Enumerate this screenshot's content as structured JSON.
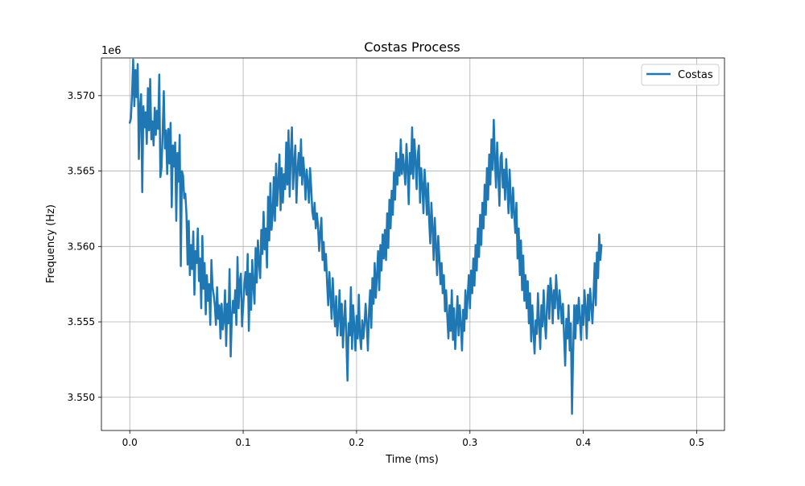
{
  "chart_data": {
    "type": "line",
    "title": "Costas Process",
    "xlabel": "Time (ms)",
    "ylabel": "Frequency (Hz)",
    "y_multiplier_label": "1e6",
    "xlim": [
      -0.025,
      0.5245
    ],
    "ylim": [
      3.5478,
      3.5725
    ],
    "x_ticks": [
      0.0,
      0.1,
      0.2,
      0.3,
      0.4,
      0.5
    ],
    "x_tick_labels": [
      "0.0",
      "0.1",
      "0.2",
      "0.3",
      "0.4",
      "0.5"
    ],
    "y_ticks": [
      3.55,
      3.555,
      3.56,
      3.565,
      3.57
    ],
    "y_tick_labels": [
      "3.550",
      "3.555",
      "3.560",
      "3.565",
      "3.570"
    ],
    "grid": true,
    "legend_position": "top-right",
    "series": [
      {
        "name": "Costas",
        "color": "#1f77b4",
        "x_start": 0.0,
        "x_step": 0.001,
        "values": [
          3.5682,
          3.5685,
          3.5701,
          3.5724,
          3.5693,
          3.5717,
          3.5699,
          3.5721,
          3.5658,
          3.5693,
          3.5701,
          3.5636,
          3.5693,
          3.5679,
          3.5689,
          3.5668,
          3.5705,
          3.5677,
          3.5711,
          3.5671,
          3.5683,
          3.5667,
          3.5692,
          3.5674,
          3.569,
          3.5678,
          3.5714,
          3.5646,
          3.5652,
          3.5676,
          3.5703,
          3.5665,
          3.5677,
          3.5648,
          3.5678,
          3.5655,
          3.5682,
          3.5626,
          3.5667,
          3.5653,
          3.5669,
          3.5617,
          3.5662,
          3.5643,
          3.5674,
          3.5587,
          3.565,
          3.5647,
          3.5632,
          3.5635,
          3.5621,
          3.5588,
          3.5617,
          3.5581,
          3.5601,
          3.5585,
          3.561,
          3.5568,
          3.5597,
          3.5589,
          3.5612,
          3.5577,
          3.5592,
          3.5559,
          3.5607,
          3.5572,
          3.5589,
          3.5555,
          3.5581,
          3.5564,
          3.5575,
          3.5548,
          3.5591,
          3.5573,
          3.5568,
          3.5561,
          3.5548,
          3.5573,
          3.5552,
          3.5561,
          3.5539,
          3.5562,
          3.5545,
          3.5551,
          3.5571,
          3.5534,
          3.5562,
          3.5549,
          3.5585,
          3.5527,
          3.5553,
          3.5564,
          3.5556,
          3.5571,
          3.5548,
          3.5593,
          3.5559,
          3.5577,
          3.5582,
          3.5547,
          3.556,
          3.5574,
          3.5583,
          3.5568,
          3.5595,
          3.5544,
          3.5582,
          3.5558,
          3.5591,
          3.5574,
          3.5562,
          3.5599,
          3.5576,
          3.5604,
          3.5589,
          3.5579,
          3.5611,
          3.5595,
          3.5623,
          3.5598,
          3.5612,
          3.5586,
          3.5633,
          3.5604,
          3.5642,
          3.5611,
          3.5621,
          3.5646,
          3.5617,
          3.5655,
          3.5627,
          3.5642,
          3.5661,
          3.5624,
          3.5652,
          3.5629,
          3.5648,
          3.5638,
          3.5669,
          3.5641,
          3.5677,
          3.5633,
          3.5661,
          3.5679,
          3.5638,
          3.5655,
          3.5667,
          3.5629,
          3.5651,
          3.5662,
          3.5647,
          3.5671,
          3.5641,
          3.5659,
          3.5648,
          3.5631,
          3.5651,
          3.5642,
          3.5629,
          3.5652,
          3.5639,
          3.5623,
          3.5618,
          3.5629,
          3.5612,
          3.5622,
          3.5614,
          3.5597,
          3.5609,
          3.5619,
          3.5591,
          3.5603,
          3.5584,
          3.5595,
          3.5576,
          3.5561,
          3.5583,
          3.5568,
          3.5552,
          3.5579,
          3.5561,
          3.5547,
          3.5567,
          3.5541,
          3.5553,
          3.5571,
          3.5541,
          3.5562,
          3.5533,
          3.5551,
          3.5564,
          3.5539,
          3.5511,
          3.5549,
          3.5541,
          3.5573,
          3.5532,
          3.5561,
          3.5547,
          3.5531,
          3.5554,
          3.5539,
          3.5568,
          3.5541,
          3.5532,
          3.5551,
          3.5539,
          3.5548,
          3.5562,
          3.5549,
          3.5531,
          3.5557,
          3.5571,
          3.5546,
          3.5579,
          3.5562,
          3.5589,
          3.5566,
          3.5581,
          3.5597,
          3.5571,
          3.5601,
          3.5584,
          3.5608,
          3.5592,
          3.5611,
          3.5591,
          3.5622,
          3.5599,
          3.5631,
          3.5612,
          3.5637,
          3.5621,
          3.5649,
          3.5631,
          3.5662,
          3.5641,
          3.5658,
          3.5647,
          3.5671,
          3.5648,
          3.5661,
          3.5652,
          3.5641,
          3.5668,
          3.5652,
          3.5628,
          3.5662,
          3.5648,
          3.5679,
          3.5645,
          3.5671,
          3.5657,
          3.5638,
          3.5661,
          3.5667,
          3.5629,
          3.5652,
          3.5641,
          3.5622,
          3.5651,
          3.5638,
          3.5621,
          3.5642,
          3.5618,
          3.5602,
          3.5629,
          3.5612,
          3.5591,
          3.5619,
          3.5601,
          3.5581,
          3.5607,
          3.5593,
          3.5575,
          3.5589,
          3.5569,
          3.5581,
          3.5557,
          3.5571,
          3.5554,
          3.5539,
          3.5561,
          3.5544,
          3.5571,
          3.5538,
          3.5559,
          3.5532,
          3.5549,
          3.5567,
          3.5541,
          3.5561,
          3.5549,
          3.5531,
          3.5558,
          3.5544,
          3.5571,
          3.5552,
          3.5567,
          3.5581,
          3.5559,
          3.5584,
          3.5569,
          3.5592,
          3.5574,
          3.5601,
          3.5584,
          3.5612,
          3.5593,
          3.5621,
          3.5601,
          3.5629,
          3.5612,
          3.5641,
          3.5621,
          3.5652,
          3.5631,
          3.5661,
          3.5641,
          3.5671,
          3.5651,
          3.5684,
          3.5658,
          3.5639,
          3.5669,
          3.5648,
          3.5627,
          3.5659,
          3.5662,
          3.5639,
          3.5651,
          3.5631,
          3.5658,
          3.5641,
          3.5622,
          3.5651,
          3.5631,
          3.5619,
          3.5639,
          3.5622,
          3.5609,
          3.5629,
          3.5592,
          3.5612,
          3.5581,
          3.5604,
          3.5571,
          3.5594,
          3.5564,
          3.5581,
          3.5559,
          3.5577,
          3.5549,
          3.5569,
          3.5537,
          3.5561,
          3.5544,
          3.5529,
          3.5551,
          3.5542,
          3.5569,
          3.5549,
          3.5532,
          3.5561,
          3.5547,
          3.5571,
          3.5551,
          3.5539,
          3.5561,
          3.5574,
          3.5552,
          3.5579,
          3.5569,
          3.5549,
          3.5571,
          3.5559,
          3.5581,
          3.5566,
          3.5552,
          3.5571,
          3.5561,
          3.5549,
          3.5562,
          3.5541,
          3.5521,
          3.5552,
          3.5539,
          3.5561,
          3.5531,
          3.5549,
          3.5489,
          3.5529,
          3.5561,
          3.5539,
          3.5561,
          3.5549,
          3.5566,
          3.5551,
          3.5538,
          3.5561,
          3.5548,
          3.5571,
          3.5559,
          3.5539,
          3.5568,
          3.5551,
          3.5572,
          3.5561,
          3.5549,
          3.5567,
          3.5589,
          3.5561,
          3.5596,
          3.5579,
          3.5608,
          3.5591,
          3.5601
        ]
      }
    ]
  }
}
